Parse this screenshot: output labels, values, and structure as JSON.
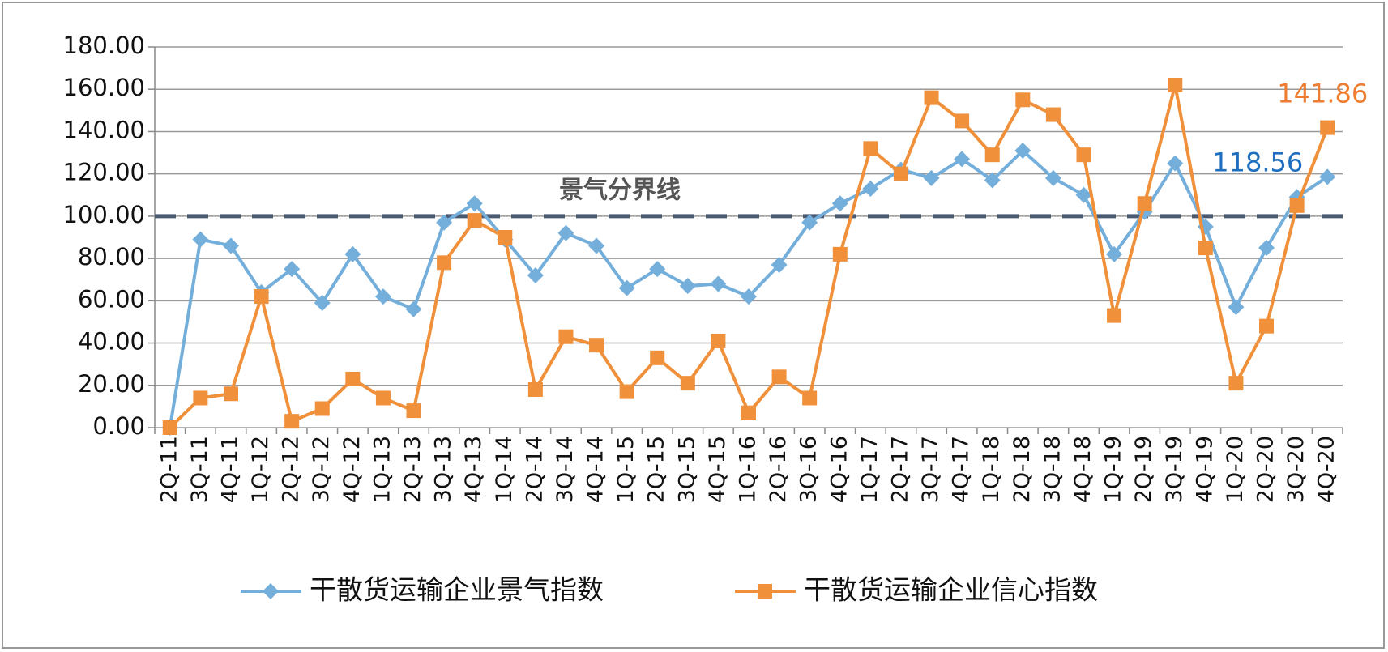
{
  "chart_data": {
    "type": "line",
    "categories": [
      "2Q-11",
      "3Q-11",
      "4Q-11",
      "1Q-12",
      "2Q-12",
      "3Q-12",
      "4Q-12",
      "1Q-13",
      "2Q-13",
      "3Q-13",
      "4Q-13",
      "1Q-14",
      "2Q-14",
      "3Q-14",
      "4Q-14",
      "1Q-15",
      "2Q-15",
      "3Q-15",
      "4Q-15",
      "1Q-16",
      "2Q-16",
      "3Q-16",
      "4Q-16",
      "1Q-17",
      "2Q-17",
      "3Q-17",
      "4Q-17",
      "1Q-18",
      "2Q-18",
      "3Q-18",
      "4Q-18",
      "1Q-19",
      "2Q-19",
      "3Q-19",
      "4Q-19",
      "1Q-20",
      "2Q-20",
      "3Q-20",
      "4Q-20"
    ],
    "series": [
      {
        "name": "干散货运输企业景气指数",
        "color": "#74aedb",
        "label_color": "#1f6fc0",
        "marker": "diamond",
        "values": [
          0,
          89,
          86,
          64,
          75,
          59,
          82,
          62,
          56,
          97,
          106,
          89,
          72,
          92,
          86,
          66,
          75,
          67,
          68,
          62,
          77,
          97,
          106,
          113,
          122,
          118,
          127,
          117,
          131,
          118,
          110,
          82,
          102,
          125,
          95,
          57,
          85,
          109,
          118.56
        ]
      },
      {
        "name": "干散货运输企业信心指数",
        "color": "#f0903a",
        "label_color": "#ed7d31",
        "marker": "square",
        "values": [
          0,
          14,
          16,
          62,
          3,
          9,
          23,
          14,
          8,
          78,
          98,
          90,
          18,
          43,
          39,
          17,
          33,
          21,
          41,
          7,
          24,
          14,
          82,
          132,
          120,
          156,
          145,
          129,
          155,
          148,
          129,
          53,
          106,
          162,
          85,
          21,
          48,
          105,
          141.86
        ]
      }
    ],
    "ylim": [
      0,
      180
    ],
    "yticks": [
      {
        "value": 0,
        "label": "0.00"
      },
      {
        "value": 20,
        "label": "20.00"
      },
      {
        "value": 40,
        "label": "40.00"
      },
      {
        "value": 60,
        "label": "60.00"
      },
      {
        "value": 80,
        "label": "80.00"
      },
      {
        "value": 100,
        "label": "100.00"
      },
      {
        "value": 120,
        "label": "120.00"
      },
      {
        "value": 140,
        "label": "140.00"
      },
      {
        "value": 160,
        "label": "160.00"
      },
      {
        "value": 180,
        "label": "180.00"
      }
    ],
    "grid": true,
    "reference_line": {
      "value": 100,
      "label": "景气分界线",
      "color": "#4a5a70"
    },
    "legend": "bottom"
  }
}
